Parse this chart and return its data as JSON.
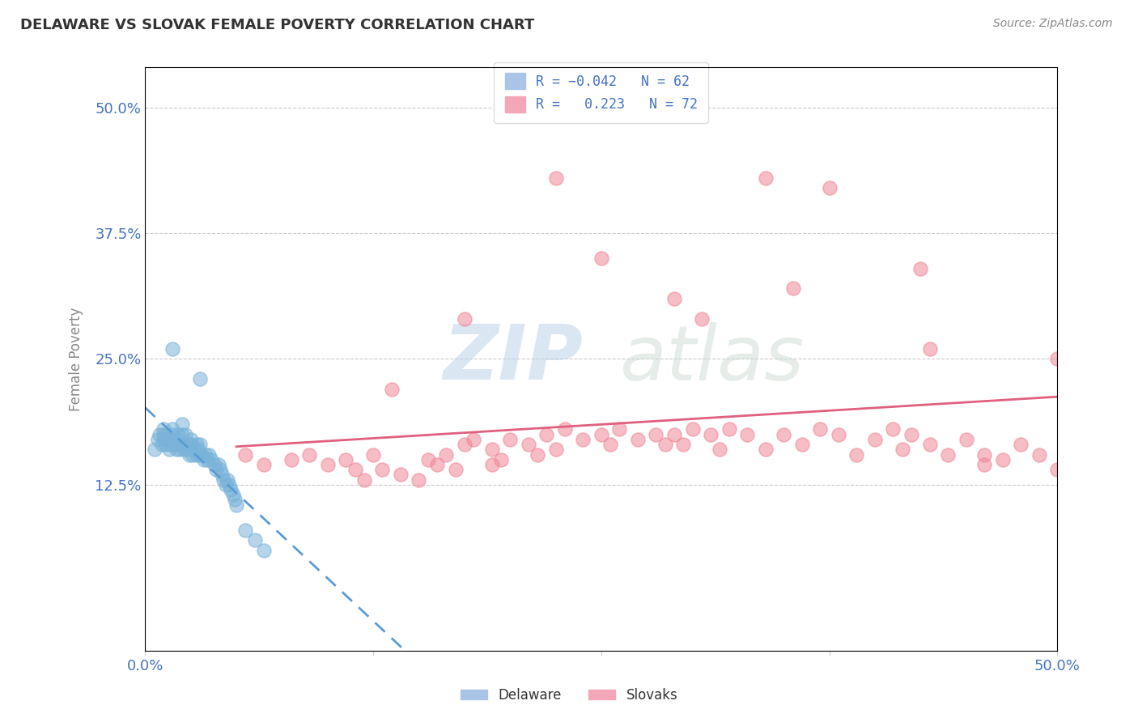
{
  "title": "DELAWARE VS SLOVAK FEMALE POVERTY CORRELATION CHART",
  "source": "Source: ZipAtlas.com",
  "ylabel": "Female Poverty",
  "ytick_labels": [
    "12.5%",
    "25.0%",
    "37.5%",
    "50.0%"
  ],
  "ytick_values": [
    0.125,
    0.25,
    0.375,
    0.5
  ],
  "xlim": [
    0.0,
    0.5
  ],
  "ylim": [
    -0.04,
    0.54
  ],
  "watermark_zip": "ZIP",
  "watermark_atlas": "atlas",
  "delaware_color": "#7ab3d9",
  "slovak_color": "#f08898",
  "delaware_line_color": "#5b9bd5",
  "slovak_line_color": "#e06080",
  "delaware_scatter_x": [
    0.005,
    0.007,
    0.008,
    0.009,
    0.01,
    0.01,
    0.01,
    0.011,
    0.012,
    0.012,
    0.013,
    0.014,
    0.015,
    0.015,
    0.015,
    0.016,
    0.017,
    0.018,
    0.018,
    0.019,
    0.02,
    0.02,
    0.02,
    0.021,
    0.022,
    0.022,
    0.023,
    0.024,
    0.024,
    0.025,
    0.025,
    0.026,
    0.027,
    0.028,
    0.028,
    0.029,
    0.03,
    0.03,
    0.031,
    0.032,
    0.033,
    0.034,
    0.035,
    0.036,
    0.038,
    0.039,
    0.04,
    0.041,
    0.042,
    0.043,
    0.044,
    0.045,
    0.046,
    0.047,
    0.048,
    0.049,
    0.05,
    0.055,
    0.06,
    0.065,
    0.015,
    0.03
  ],
  "delaware_scatter_y": [
    0.16,
    0.17,
    0.175,
    0.165,
    0.17,
    0.175,
    0.18,
    0.165,
    0.17,
    0.175,
    0.16,
    0.165,
    0.17,
    0.175,
    0.18,
    0.165,
    0.16,
    0.17,
    0.175,
    0.16,
    0.165,
    0.175,
    0.185,
    0.16,
    0.165,
    0.175,
    0.16,
    0.165,
    0.155,
    0.17,
    0.165,
    0.155,
    0.16,
    0.165,
    0.155,
    0.16,
    0.155,
    0.165,
    0.155,
    0.15,
    0.155,
    0.15,
    0.155,
    0.15,
    0.145,
    0.14,
    0.145,
    0.14,
    0.135,
    0.13,
    0.125,
    0.13,
    0.125,
    0.12,
    0.115,
    0.11,
    0.105,
    0.08,
    0.07,
    0.06,
    0.26,
    0.23
  ],
  "slovak_scatter_x": [
    0.055,
    0.065,
    0.08,
    0.09,
    0.1,
    0.11,
    0.115,
    0.12,
    0.125,
    0.13,
    0.14,
    0.15,
    0.155,
    0.16,
    0.165,
    0.17,
    0.175,
    0.18,
    0.19,
    0.195,
    0.2,
    0.21,
    0.215,
    0.22,
    0.225,
    0.23,
    0.24,
    0.25,
    0.255,
    0.26,
    0.27,
    0.28,
    0.285,
    0.29,
    0.295,
    0.3,
    0.31,
    0.315,
    0.32,
    0.33,
    0.34,
    0.35,
    0.36,
    0.37,
    0.38,
    0.39,
    0.4,
    0.41,
    0.415,
    0.42,
    0.43,
    0.44,
    0.45,
    0.46,
    0.47,
    0.48,
    0.49,
    0.5,
    0.29,
    0.305,
    0.355,
    0.425,
    0.135,
    0.175,
    0.225,
    0.34,
    0.25,
    0.375,
    0.43,
    0.19,
    0.46,
    0.5
  ],
  "slovak_scatter_y": [
    0.155,
    0.145,
    0.15,
    0.155,
    0.145,
    0.15,
    0.14,
    0.13,
    0.155,
    0.14,
    0.135,
    0.13,
    0.15,
    0.145,
    0.155,
    0.14,
    0.165,
    0.17,
    0.16,
    0.15,
    0.17,
    0.165,
    0.155,
    0.175,
    0.16,
    0.18,
    0.17,
    0.175,
    0.165,
    0.18,
    0.17,
    0.175,
    0.165,
    0.175,
    0.165,
    0.18,
    0.175,
    0.16,
    0.18,
    0.175,
    0.16,
    0.175,
    0.165,
    0.18,
    0.175,
    0.155,
    0.17,
    0.18,
    0.16,
    0.175,
    0.165,
    0.155,
    0.17,
    0.155,
    0.15,
    0.165,
    0.155,
    0.14,
    0.31,
    0.29,
    0.32,
    0.34,
    0.22,
    0.29,
    0.43,
    0.43,
    0.35,
    0.42,
    0.26,
    0.145,
    0.145,
    0.25
  ]
}
